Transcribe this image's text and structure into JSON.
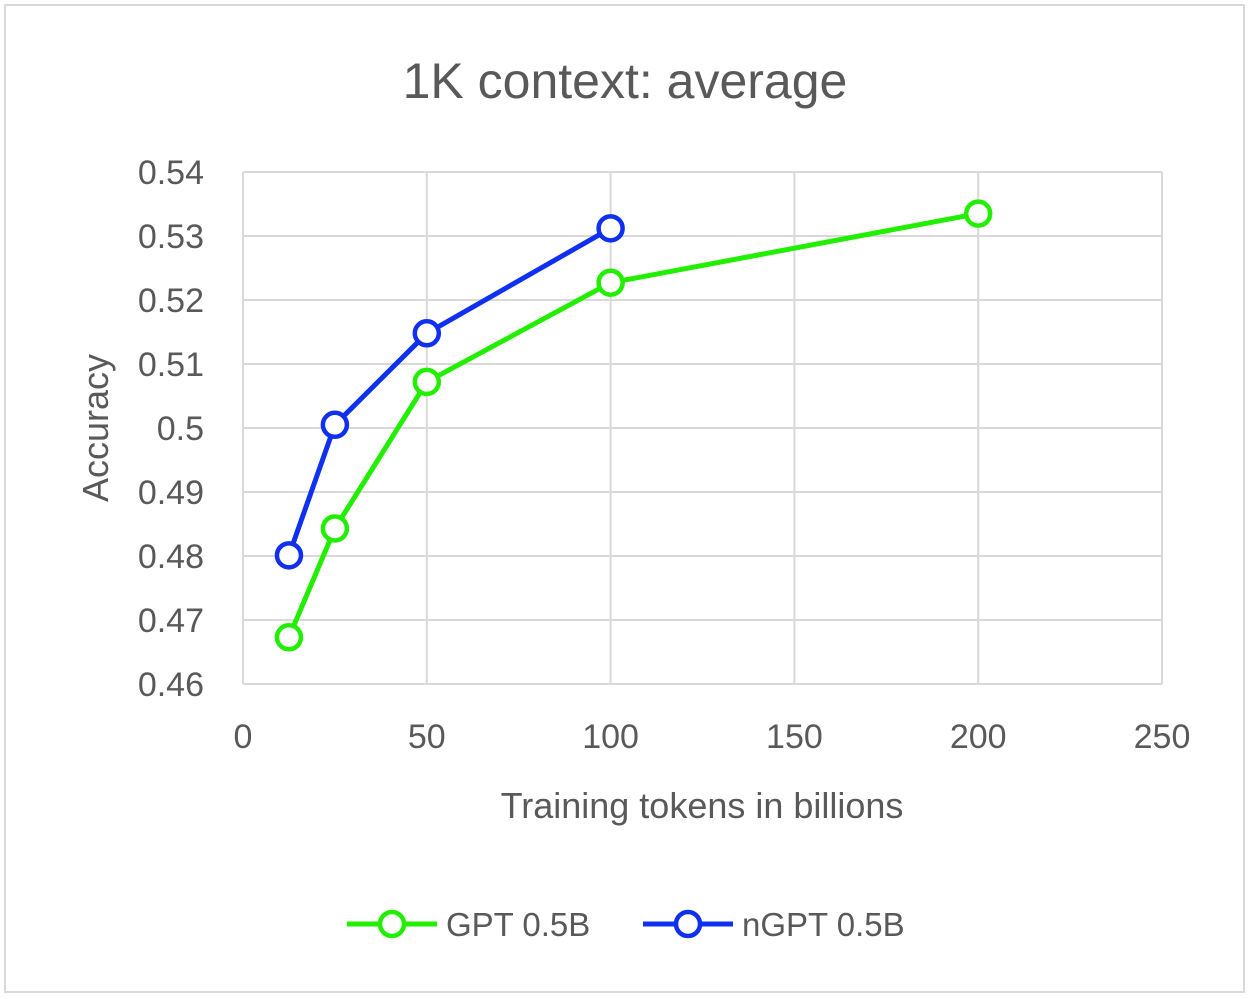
{
  "chart_data": {
    "type": "line",
    "title": "1K context: average",
    "xlabel": "Training tokens in billions",
    "ylabel": "Accuracy",
    "xlim": [
      0,
      250
    ],
    "ylim": [
      0.46,
      0.54
    ],
    "xticks": [
      "0",
      "50",
      "100",
      "150",
      "200",
      "250"
    ],
    "yticks": [
      "0.46",
      "0.47",
      "0.48",
      "0.49",
      "0.5",
      "0.51",
      "0.52",
      "0.53",
      "0.54"
    ],
    "grid": true,
    "legend_position": "bottom",
    "series": [
      {
        "name": "GPT 0.5B",
        "color": "#22ee00",
        "x": [
          12.5,
          25,
          50,
          100,
          200
        ],
        "y": [
          0.4673,
          0.4843,
          0.5072,
          0.5227,
          0.5335
        ]
      },
      {
        "name": "nGPT 0.5B",
        "color": "#1030f0",
        "x": [
          12.5,
          25,
          50,
          100
        ],
        "y": [
          0.4801,
          0.5005,
          0.5148,
          0.5312
        ]
      }
    ]
  }
}
